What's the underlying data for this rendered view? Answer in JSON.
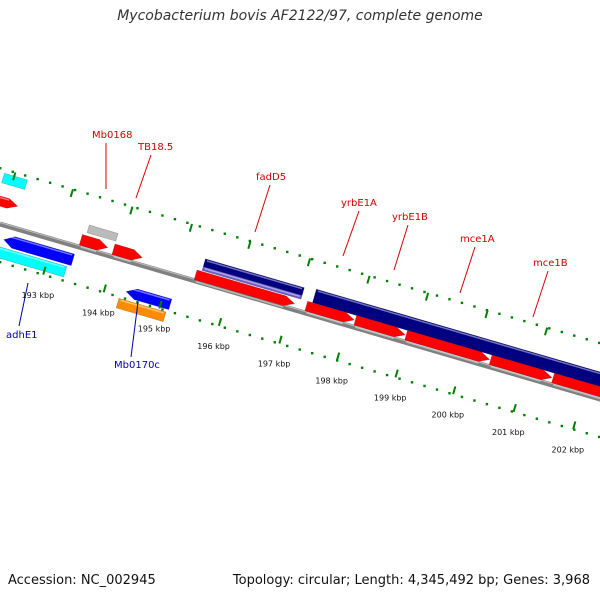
{
  "title": "Mycobacterium bovis AF2122/97, complete genome",
  "footer": {
    "accession": "Accession: NC_002945",
    "summary": "Topology: circular; Length: 4,345,492 bp; Genes: 3,968"
  },
  "colors": {
    "forward_cds": "#ff0000",
    "reverse_cds": "#0000ff",
    "operon_dark": "#000080",
    "operon_light": "#6a5acd",
    "cyan": "#00ffff",
    "orange": "#ff8c00",
    "grey": "#bbbbbb",
    "tick": "#008000",
    "backbone": "#808080",
    "label_forward": "#d40000",
    "label_reverse": "#0000aa"
  },
  "ticks": [
    {
      "label": "193 kbp"
    },
    {
      "label": "194 kbp"
    },
    {
      "label": "195 kbp"
    },
    {
      "label": "196 kbp"
    },
    {
      "label": "197 kbp"
    },
    {
      "label": "198 kbp"
    },
    {
      "label": "199 kbp"
    },
    {
      "label": "200 kbp"
    },
    {
      "label": "201 kbp"
    },
    {
      "label": "202 kbp"
    }
  ],
  "gene_labels": [
    {
      "name": "Mb0168",
      "strand": "forward"
    },
    {
      "name": "TB18.5",
      "strand": "forward"
    },
    {
      "name": "fadD5",
      "strand": "forward"
    },
    {
      "name": "yrbE1A",
      "strand": "forward"
    },
    {
      "name": "yrbE1B",
      "strand": "forward"
    },
    {
      "name": "mce1A",
      "strand": "forward"
    },
    {
      "name": "mce1B",
      "strand": "forward"
    },
    {
      "name": "adhE1",
      "strand": "reverse"
    },
    {
      "name": "Mb0170c",
      "strand": "reverse"
    }
  ]
}
